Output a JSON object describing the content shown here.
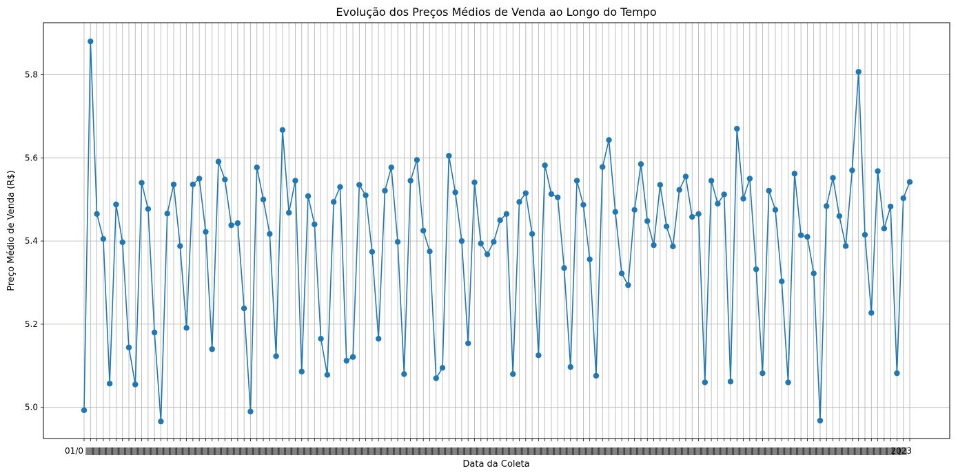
{
  "chart_data": {
    "type": "line",
    "title": "Evolução dos Preços Médios de Venda ao Longo do Tempo",
    "xlabel": "Data da Coleta",
    "ylabel": "Preço Médio de Venda (R$)",
    "ylim": [
      4.925,
      5.925
    ],
    "yticks": [
      "5.0",
      "5.2",
      "5.4",
      "5.6",
      "5.8"
    ],
    "grid": true,
    "x_tick_text": "01/01/2023 … 2023 (overlapping date labels, one per point)",
    "x_first_label": "01/0",
    "x_last_label": "2023",
    "series": [
      {
        "color": "#1f77b4",
        "values": [
          4.993,
          5.88,
          5.465,
          5.405,
          5.057,
          5.488,
          5.397,
          5.144,
          5.055,
          5.54,
          5.477,
          5.18,
          4.966,
          5.466,
          5.536,
          5.388,
          5.191,
          5.536,
          5.55,
          5.422,
          5.14,
          5.591,
          5.548,
          5.438,
          5.443,
          5.238,
          4.99,
          5.577,
          5.5,
          5.417,
          5.123,
          5.667,
          5.468,
          5.545,
          5.086,
          5.508,
          5.44,
          5.165,
          5.078,
          5.494,
          5.53,
          5.112,
          5.121,
          5.535,
          5.51,
          5.374,
          5.165,
          5.521,
          5.577,
          5.398,
          5.08,
          5.545,
          5.595,
          5.425,
          5.375,
          5.07,
          5.095,
          5.605,
          5.517,
          5.4,
          5.154,
          5.541,
          5.394,
          5.368,
          5.398,
          5.45,
          5.465,
          5.08,
          5.494,
          5.515,
          5.417,
          5.125,
          5.582,
          5.513,
          5.505,
          5.335,
          5.097,
          5.545,
          5.487,
          5.356,
          5.076,
          5.578,
          5.643,
          5.47,
          5.322,
          5.294,
          5.475,
          5.585,
          5.448,
          5.39,
          5.535,
          5.435,
          5.387,
          5.523,
          5.555,
          5.458,
          5.465,
          5.06,
          5.545,
          5.49,
          5.512,
          5.062,
          5.67,
          5.502,
          5.55,
          5.332,
          5.082,
          5.521,
          5.475,
          5.303,
          5.06,
          5.562,
          5.414,
          5.41,
          5.322,
          4.968,
          5.484,
          5.552,
          5.46,
          5.388,
          5.57,
          5.807,
          5.415,
          5.227,
          5.568,
          5.43,
          5.483,
          5.082,
          5.503,
          5.542
        ]
      }
    ]
  }
}
